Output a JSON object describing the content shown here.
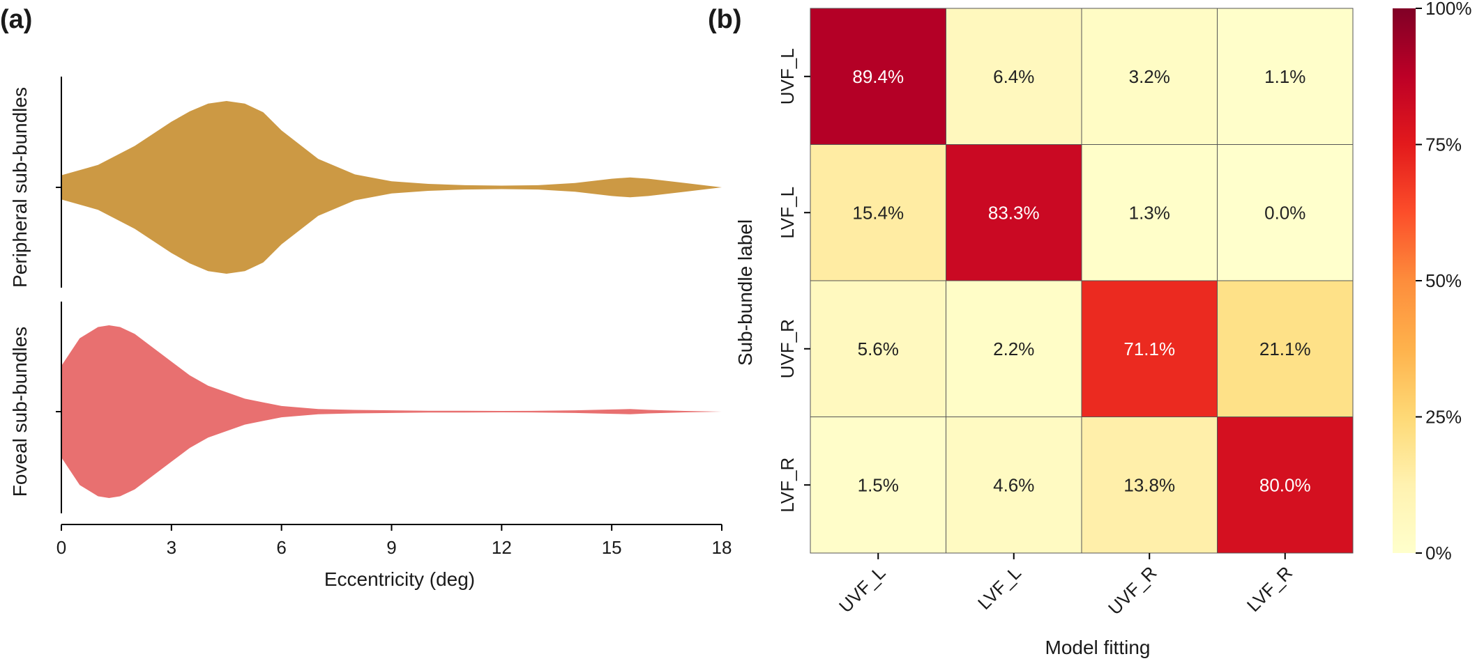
{
  "figure": {
    "panel_a_label": "(a)",
    "panel_b_label": "(b)"
  },
  "chart_data": [
    {
      "type": "violin",
      "panel": "(a)",
      "xlabel": "Eccentricity (deg)",
      "xlim": [
        0,
        18
      ],
      "xticks": [
        0,
        3,
        6,
        9,
        12,
        15,
        18
      ],
      "grid": false,
      "categories": [
        "Peripheral sub-bundles",
        "Foveal sub-bundles"
      ],
      "series": [
        {
          "name": "Peripheral sub-bundles",
          "color": "#cc9944",
          "x": [
            0,
            1,
            2,
            3,
            3.5,
            4,
            4.5,
            5,
            5.5,
            6,
            7,
            8,
            9,
            10,
            11,
            12,
            13,
            14,
            15,
            15.5,
            16,
            17,
            18
          ],
          "density": [
            0.14,
            0.26,
            0.48,
            0.76,
            0.88,
            0.97,
            1.0,
            0.97,
            0.87,
            0.66,
            0.33,
            0.15,
            0.07,
            0.04,
            0.025,
            0.02,
            0.025,
            0.05,
            0.1,
            0.115,
            0.1,
            0.05,
            0.0
          ]
        },
        {
          "name": "Foveal sub-bundles",
          "color": "#e87070",
          "x": [
            0,
            0.5,
            1,
            1.3,
            1.6,
            2,
            2.5,
            3,
            3.5,
            4,
            5,
            6,
            7,
            8,
            9,
            10,
            11,
            12,
            13,
            14,
            15,
            15.5,
            16,
            17,
            18
          ],
          "density": [
            0.53,
            0.85,
            0.98,
            1.0,
            0.98,
            0.9,
            0.74,
            0.58,
            0.42,
            0.3,
            0.15,
            0.065,
            0.03,
            0.02,
            0.015,
            0.01,
            0.01,
            0.008,
            0.01,
            0.015,
            0.025,
            0.03,
            0.02,
            0.008,
            0.0
          ]
        }
      ]
    },
    {
      "type": "heatmap",
      "panel": "(b)",
      "xlabel": "Model fitting",
      "ylabel": "Sub-bundle label",
      "x_categories": [
        "UVF_L",
        "LVF_L",
        "UVF_R",
        "LVF_R"
      ],
      "y_categories": [
        "UVF_L",
        "LVF_L",
        "UVF_R",
        "LVF_R"
      ],
      "values": [
        [
          89.4,
          6.4,
          3.2,
          1.1
        ],
        [
          15.4,
          83.3,
          1.3,
          0.0
        ],
        [
          5.6,
          2.2,
          71.1,
          21.1
        ],
        [
          1.5,
          4.6,
          13.8,
          80.0
        ]
      ],
      "value_format": "%.1f%",
      "colorscale": "YlOrRd",
      "colorbar": {
        "range": [
          0,
          100
        ],
        "ticks": [
          0,
          25,
          50,
          75,
          100
        ],
        "tick_labels": [
          "0%",
          "25%",
          "50%",
          "75%",
          "100%"
        ]
      }
    }
  ]
}
